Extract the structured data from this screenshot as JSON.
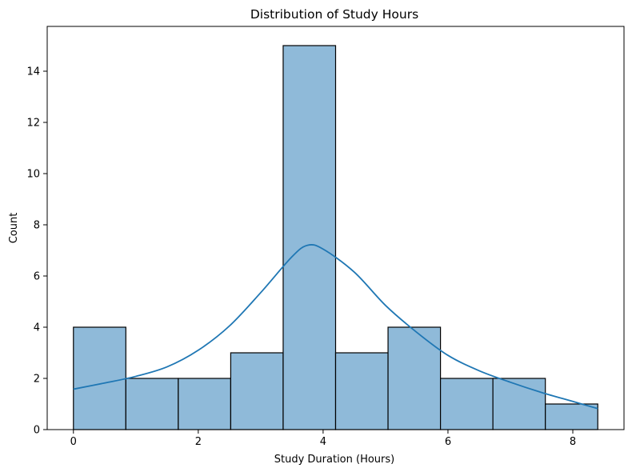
{
  "chart_data": {
    "type": "bar",
    "subtype": "histogram-with-kde",
    "title": "Distribution of Study Hours",
    "xlabel": "Study Duration (Hours)",
    "ylabel": "Count",
    "bin_edges": [
      0,
      0.84,
      1.68,
      2.52,
      3.36,
      4.2,
      5.04,
      5.88,
      6.72,
      7.56,
      8.4
    ],
    "counts": [
      4,
      2,
      2,
      3,
      15,
      3,
      4,
      2,
      2,
      1
    ],
    "xticks": [
      0,
      2,
      4,
      6,
      8
    ],
    "yticks": [
      0,
      2,
      4,
      6,
      8,
      10,
      12,
      14
    ],
    "xlim": [
      -0.42,
      8.82
    ],
    "ylim": [
      0,
      15.75
    ],
    "kde": {
      "x": [
        0,
        0.5,
        1,
        1.5,
        2,
        2.5,
        3,
        3.5,
        3.75,
        4,
        4.5,
        5,
        5.5,
        6,
        6.5,
        7,
        7.5,
        8,
        8.4
      ],
      "y": [
        1.58,
        1.82,
        2.08,
        2.45,
        3.1,
        4.05,
        5.35,
        6.75,
        7.2,
        7.05,
        6.15,
        4.85,
        3.8,
        2.9,
        2.3,
        1.85,
        1.45,
        1.1,
        0.82
      ]
    },
    "grid": false,
    "colors": {
      "bar_fill": "#8fbad9",
      "bar_edge": "#000000",
      "kde_line": "#1f77b4"
    }
  }
}
